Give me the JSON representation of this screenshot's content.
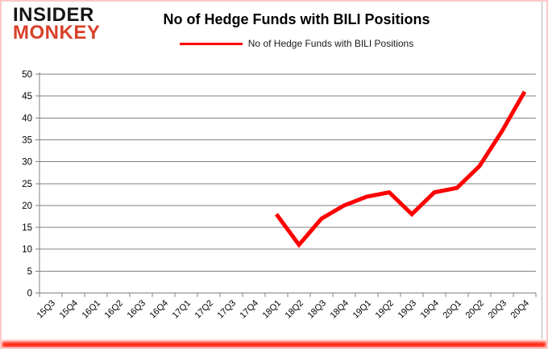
{
  "brand": {
    "line1": "INSIDER",
    "line2": "MONKEY",
    "line1_color": "#151515",
    "line2_color": "#d8402a"
  },
  "chart_data": {
    "type": "line",
    "title": "No of Hedge Funds with BILI Positions",
    "legend_position": "top",
    "categories": [
      "15Q3",
      "15Q4",
      "16Q1",
      "16Q2",
      "16Q3",
      "16Q4",
      "17Q1",
      "17Q2",
      "17Q3",
      "17Q4",
      "18Q1",
      "18Q2",
      "18Q3",
      "18Q4",
      "19Q1",
      "19Q2",
      "19Q3",
      "19Q4",
      "20Q1",
      "20Q2",
      "20Q3",
      "20Q4"
    ],
    "series": [
      {
        "name": "No of Hedge Funds with BILI Positions",
        "color": "#ff0000",
        "values": [
          null,
          null,
          null,
          null,
          null,
          null,
          null,
          null,
          null,
          null,
          18,
          11,
          17,
          20,
          22,
          23,
          18,
          23,
          24,
          29,
          37,
          46
        ]
      }
    ],
    "xlabel": "",
    "ylabel": "",
    "ylim": [
      0,
      50
    ],
    "ytick_step": 5,
    "grid": true,
    "grid_color": "#808080",
    "axis_color": "#808080",
    "tick_label_color": "#000000"
  }
}
